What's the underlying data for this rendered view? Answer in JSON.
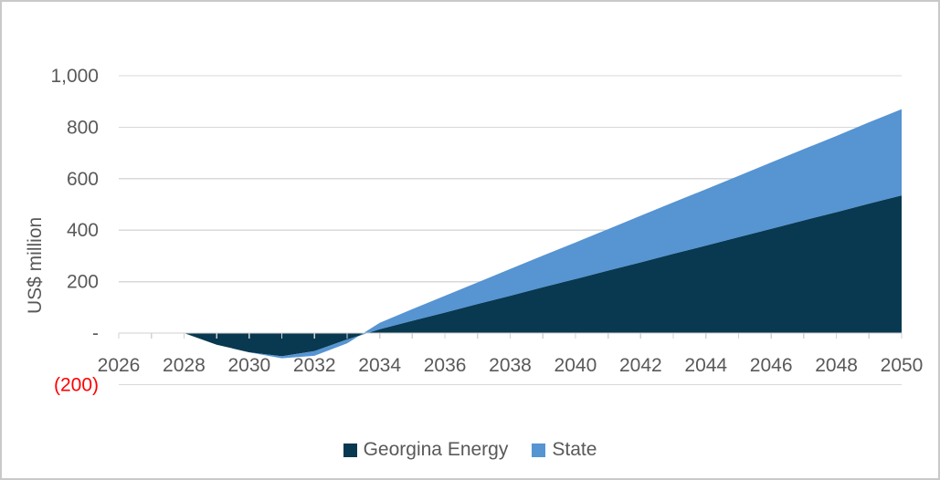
{
  "frame": {
    "background": "#ffffff",
    "border_color": "#c9c9c9"
  },
  "chart_data": {
    "type": "area",
    "stacked": true,
    "title": "",
    "xlabel": "",
    "ylabel": "US$ million",
    "ylim": [
      -200,
      1000
    ],
    "grid": "horizontal",
    "legend_position": "bottom",
    "x": [
      2026,
      2027,
      2028,
      2029,
      2030,
      2031,
      2032,
      2033,
      2034,
      2035,
      2036,
      2037,
      2038,
      2039,
      2040,
      2041,
      2042,
      2043,
      2044,
      2045,
      2046,
      2047,
      2048,
      2049,
      2050
    ],
    "x_ticks": [
      {
        "year": 2026,
        "label": "2026"
      },
      {
        "year": 2028,
        "label": "2028"
      },
      {
        "year": 2030,
        "label": "2030"
      },
      {
        "year": 2032,
        "label": "2032"
      },
      {
        "year": 2034,
        "label": "2034"
      },
      {
        "year": 2036,
        "label": "2036"
      },
      {
        "year": 2038,
        "label": "2038"
      },
      {
        "year": 2040,
        "label": "2040"
      },
      {
        "year": 2042,
        "label": "2042"
      },
      {
        "year": 2044,
        "label": "2044"
      },
      {
        "year": 2046,
        "label": "2046"
      },
      {
        "year": 2048,
        "label": "2048"
      },
      {
        "year": 2050,
        "label": "2050"
      }
    ],
    "y_ticks": [
      {
        "value": 1000,
        "label": "1,000"
      },
      {
        "value": 800,
        "label": "800"
      },
      {
        "value": 600,
        "label": "600"
      },
      {
        "value": 400,
        "label": "400"
      },
      {
        "value": 200,
        "label": "200"
      },
      {
        "value": 0,
        "label": "-"
      },
      {
        "value": -200,
        "label": "(200)",
        "color": "#ff0000"
      }
    ],
    "series": [
      {
        "name": "Georgina Energy",
        "color": "#093950",
        "values": [
          0,
          0,
          0,
          -45,
          -75,
          -90,
          -70,
          -25,
          15,
          48,
          80,
          113,
          145,
          178,
          210,
          243,
          275,
          308,
          340,
          373,
          405,
          438,
          470,
          503,
          535
        ]
      },
      {
        "name": "State",
        "color": "#5694d2",
        "values": [
          0,
          0,
          0,
          0,
          0,
          -8,
          -18,
          -15,
          25,
          45,
          65,
          84,
          104,
          123,
          142,
          161,
          181,
          200,
          219,
          238,
          258,
          277,
          296,
          316,
          335
        ]
      }
    ],
    "styles": {
      "gridline_color": "#d9d9d9",
      "axis_color": "#d2d2d2",
      "tick_label_color": "#595959",
      "negative_label_color": "#ff0000"
    }
  }
}
